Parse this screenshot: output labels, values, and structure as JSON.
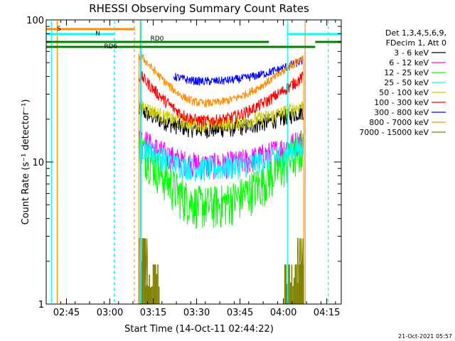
{
  "chart_data": {
    "type": "line",
    "title": "RHESSI Observing Summary Count Rates",
    "xlabel": "Start Time (14-Oct-11 02:44:22)",
    "ylabel": "Count Rate (s⁻¹ detector⁻¹)",
    "yscale": "log",
    "ylim": [
      1,
      100
    ],
    "xlim_minutes": [
      -7,
      95
    ],
    "x_ticks": [
      {
        "t": 0,
        "label": "02:45"
      },
      {
        "t": 15,
        "label": "03:00"
      },
      {
        "t": 30,
        "label": "03:15"
      },
      {
        "t": 45,
        "label": "03:30"
      },
      {
        "t": 60,
        "label": "03:45"
      },
      {
        "t": 75,
        "label": "04:00"
      },
      {
        "t": 90,
        "label": "04:15"
      }
    ],
    "y_ticks": [
      {
        "v": 1,
        "label": "1"
      },
      {
        "v": 10,
        "label": "10"
      },
      {
        "v": 100,
        "label": "100"
      }
    ],
    "legend_header": [
      "Det 1,3,4,5,6,9,",
      "FDecim 1, Att 0"
    ],
    "legend_position": "right",
    "series": [
      {
        "name": "3 - 6 keV",
        "color": "#000000",
        "data_start": 25,
        "data_end": 82,
        "low": 17,
        "high": 23,
        "noise": 0.14
      },
      {
        "name": "6 - 12 keV",
        "color": "#ff00ff",
        "data_start": 25,
        "data_end": 82,
        "low": 9.5,
        "high": 14.5,
        "noise": 0.22
      },
      {
        "name": "12 - 25 keV",
        "color": "#00ff00",
        "data_start": 25,
        "data_end": 82,
        "low": 5.0,
        "high": 12.5,
        "noise": 0.35
      },
      {
        "name": "25 - 50 keV",
        "color": "#00ffff",
        "data_start": 25,
        "data_end": 82,
        "low": 9.0,
        "high": 13.0,
        "noise": 0.2
      },
      {
        "name": "50 - 100 keV",
        "color": "#cccc00",
        "data_start": 25,
        "data_end": 82,
        "low": 18.5,
        "high": 25.0,
        "noise": 0.12
      },
      {
        "name": "100 - 300 keV",
        "color": "#ff0000",
        "data_start": 25,
        "data_end": 82,
        "low": 19.5,
        "high": 40.0,
        "noise": 0.1
      },
      {
        "name": "300 - 800 keV",
        "color": "#0000ff",
        "data_start": 37,
        "data_end": 82,
        "low": 37.0,
        "high": 52.0,
        "noise": 0.07
      },
      {
        "name": "800 - 7000 keV",
        "color": "#ff8c00",
        "data_start": 25,
        "data_end": 82,
        "low": 26.0,
        "high": 55.0,
        "noise": 0.07
      },
      {
        "name": "7000 - 15000 keV",
        "color": "#808000",
        "data_start": 25,
        "data_end": 82,
        "low": 1.0,
        "high": 2.9,
        "noise": 0.0
      }
    ],
    "flags": [
      {
        "name": "S",
        "color": "#ff8c00"
      },
      {
        "name": "N",
        "color": "#00ffff"
      },
      {
        "name": "RD0",
        "color": "#008000"
      },
      {
        "name": "RD6",
        "color": "#008000"
      }
    ]
  },
  "footer": {
    "timestamp": "21-Oct-2021 05:57"
  }
}
